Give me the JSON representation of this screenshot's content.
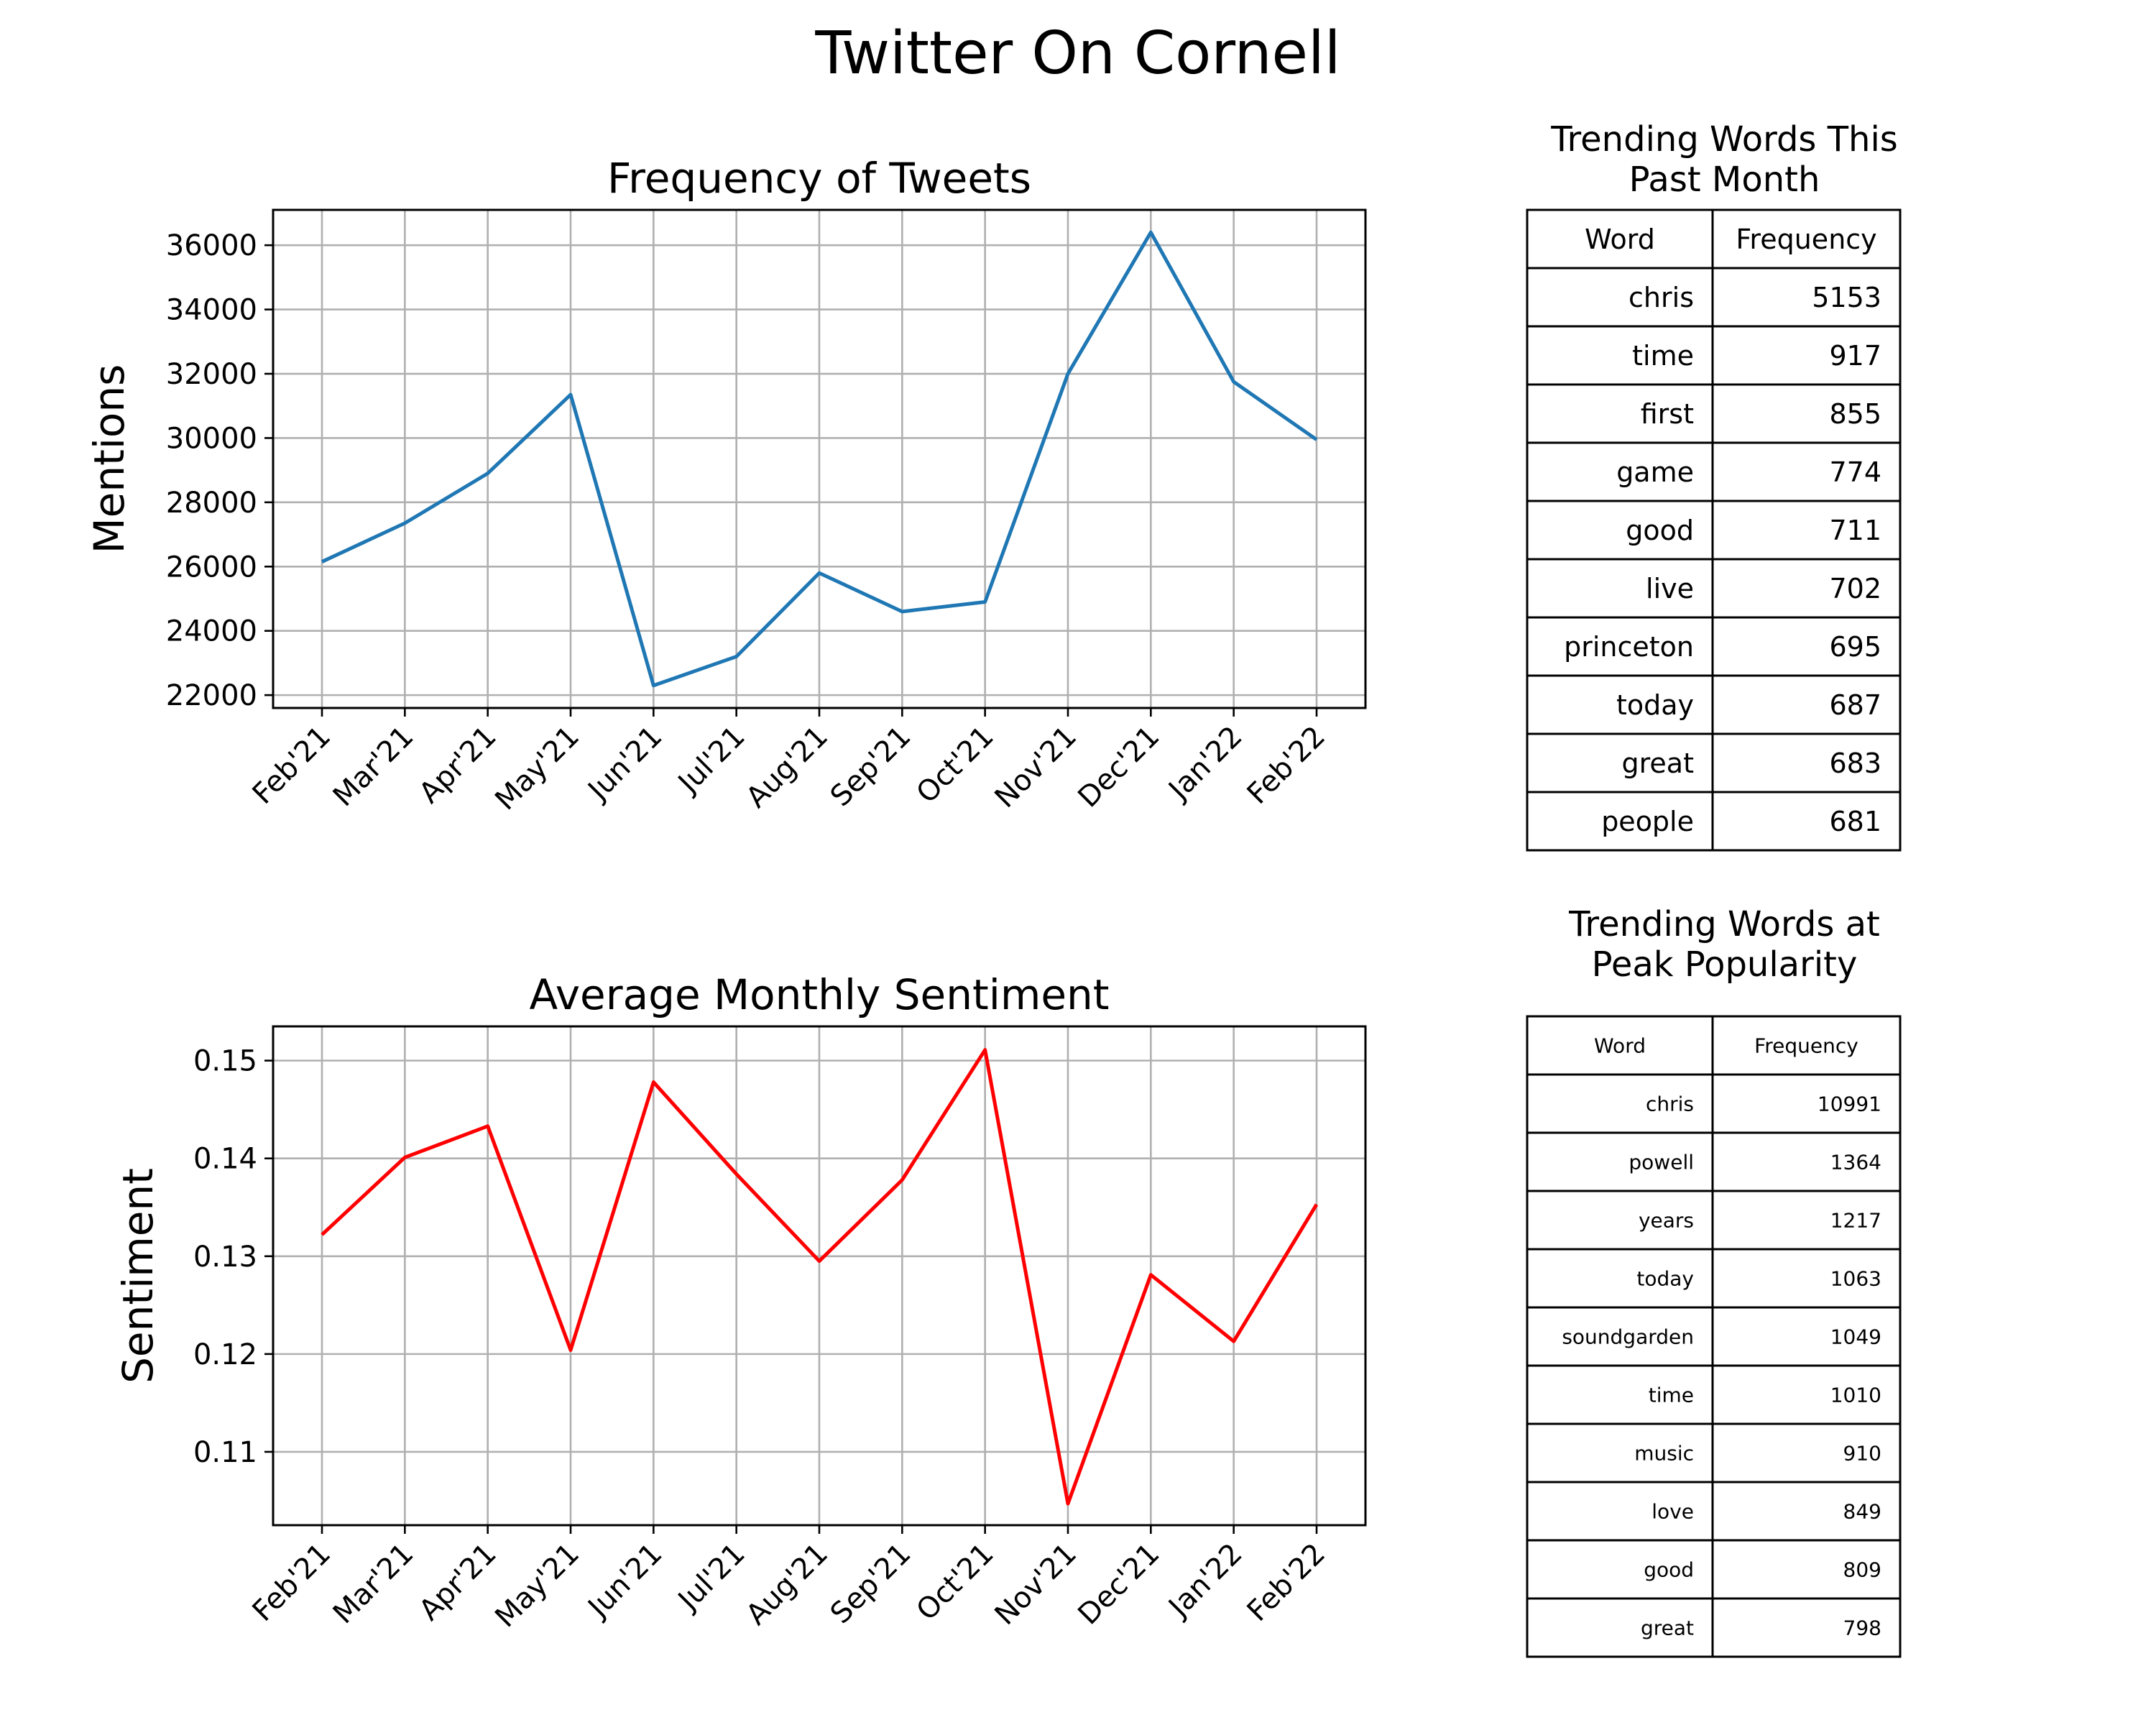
{
  "figure": {
    "title": "Twitter On Cornell"
  },
  "chart_data": [
    {
      "type": "line",
      "title": "Frequency of Tweets",
      "xlabel": "",
      "ylabel": "Mentions",
      "categories": [
        "Feb'21",
        "Mar'21",
        "Apr'21",
        "May'21",
        "Jun'21",
        "Jul'21",
        "Aug'21",
        "Sep'21",
        "Oct'21",
        "Nov'21",
        "Dec'21",
        "Jan'22",
        "Feb'22"
      ],
      "values": [
        26150,
        27350,
        28900,
        31350,
        22300,
        23200,
        25800,
        24600,
        24900,
        32000,
        36400,
        31750,
        29950
      ],
      "ylim": [
        21600,
        37100
      ],
      "yticks": [
        "22000",
        "24000",
        "26000",
        "28000",
        "30000",
        "32000",
        "34000",
        "36000"
      ],
      "color": "#1f77b4",
      "grid": true
    },
    {
      "type": "line",
      "title": "Average Monthly Sentiment",
      "xlabel": "",
      "ylabel": "Sentiment",
      "categories": [
        "Feb'21",
        "Mar'21",
        "Apr'21",
        "May'21",
        "Jun'21",
        "Jul'21",
        "Aug'21",
        "Sep'21",
        "Oct'21",
        "Nov'21",
        "Dec'21",
        "Jan'22",
        "Feb'22"
      ],
      "values": [
        0.1322,
        0.1401,
        0.1433,
        0.1204,
        0.1478,
        0.1384,
        0.1295,
        0.1378,
        0.1511,
        0.1047,
        0.1281,
        0.1213,
        0.1353
      ],
      "ylim": [
        0.1025,
        0.1535
      ],
      "yticks": [
        "0.11",
        "0.12",
        "0.13",
        "0.14",
        "0.15"
      ],
      "color": "#ff0000",
      "grid": true
    },
    {
      "type": "table",
      "title": "Trending Words This\nPast Month",
      "columns": [
        "Word",
        "Frequency"
      ],
      "rows": [
        [
          "chris",
          "5153"
        ],
        [
          "time",
          "917"
        ],
        [
          "first",
          "855"
        ],
        [
          "game",
          "774"
        ],
        [
          "good",
          "711"
        ],
        [
          "live",
          "702"
        ],
        [
          "princeton",
          "695"
        ],
        [
          "today",
          "687"
        ],
        [
          "great",
          "683"
        ],
        [
          "people",
          "681"
        ]
      ]
    },
    {
      "type": "table",
      "title": "Trending Words at\nPeak Popularity",
      "columns": [
        "Word",
        "Frequency"
      ],
      "rows": [
        [
          "chris",
          "10991"
        ],
        [
          "powell",
          "1364"
        ],
        [
          "years",
          "1217"
        ],
        [
          "today",
          "1063"
        ],
        [
          "soundgarden",
          "1049"
        ],
        [
          "time",
          "1010"
        ],
        [
          "music",
          "910"
        ],
        [
          "love",
          "849"
        ],
        [
          "good",
          "809"
        ],
        [
          "great",
          "798"
        ]
      ]
    }
  ]
}
